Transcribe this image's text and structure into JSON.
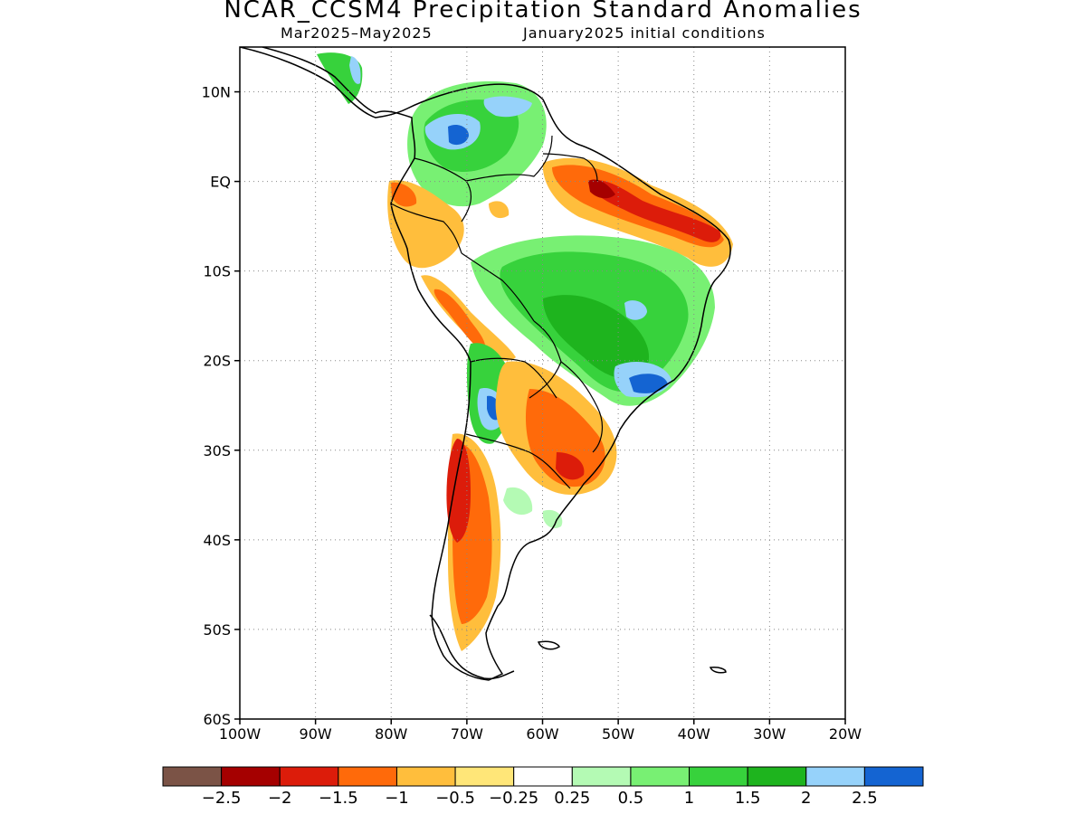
{
  "title": "NCAR_CCSM4 Precipitation Standard Anomalies",
  "subtitle_period": "Mar2025–May2025",
  "subtitle_ic": "January2025 initial conditions",
  "map": {
    "lon_range": [
      -100,
      -20
    ],
    "lat_range": [
      -60,
      15
    ],
    "gridlines": "dotted",
    "lat_ticks": [
      {
        "value": 10,
        "label": "10N"
      },
      {
        "value": 0,
        "label": "EQ"
      },
      {
        "value": -10,
        "label": "10S"
      },
      {
        "value": -20,
        "label": "20S"
      },
      {
        "value": -30,
        "label": "30S"
      },
      {
        "value": -40,
        "label": "40S"
      },
      {
        "value": -50,
        "label": "50S"
      },
      {
        "value": -60,
        "label": "60S"
      }
    ],
    "lon_ticks": [
      {
        "value": -100,
        "label": "100W"
      },
      {
        "value": -90,
        "label": "90W"
      },
      {
        "value": -80,
        "label": "80W"
      },
      {
        "value": -70,
        "label": "70W"
      },
      {
        "value": -60,
        "label": "60W"
      },
      {
        "value": -50,
        "label": "50W"
      },
      {
        "value": -40,
        "label": "40W"
      },
      {
        "value": -30,
        "label": "30W"
      },
      {
        "value": -20,
        "label": "20W"
      }
    ]
  },
  "colorbar": {
    "colors": [
      "#7b5346",
      "#a50000",
      "#dc1c0a",
      "#ff6a0a",
      "#ffbe3c",
      "#ffe678",
      "#ffffff",
      "#b4fab4",
      "#78f073",
      "#37d23c",
      "#1eb41e",
      "#96d2fa",
      "#1464d2"
    ],
    "labels": [
      "−2.5",
      "−2",
      "−1.5",
      "−1",
      "−0.5",
      "−0.25",
      "0.25",
      "0.5",
      "1",
      "1.5",
      "2",
      "2.5"
    ]
  }
}
